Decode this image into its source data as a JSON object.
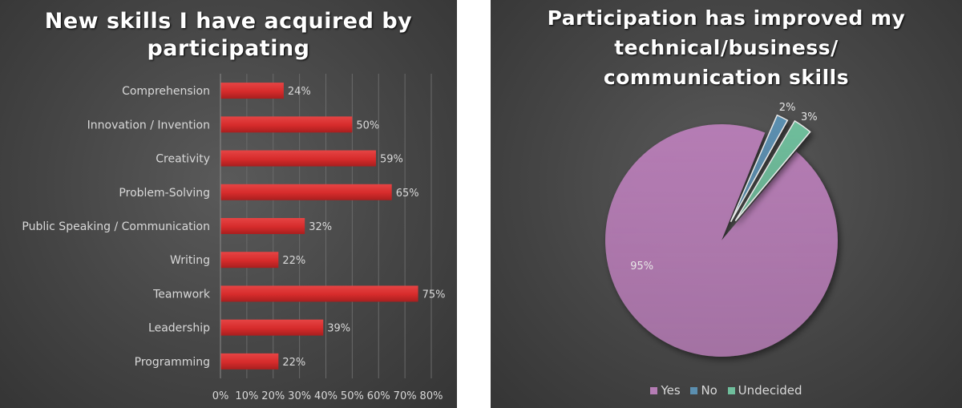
{
  "chart_data": [
    {
      "type": "bar",
      "orientation": "horizontal",
      "title": "New skills I have acquired by participating",
      "title_lines": [
        "New skills I have acquired by",
        "participating"
      ],
      "categories": [
        "Comprehension",
        "Innovation / Invention",
        "Creativity",
        "Problem-Solving",
        "Public Speaking / Communication",
        "Writing",
        "Teamwork",
        "Leadership",
        "Programming"
      ],
      "values": [
        24,
        50,
        59,
        65,
        32,
        22,
        75,
        39,
        22
      ],
      "value_labels": [
        "24%",
        "50%",
        "59%",
        "65%",
        "32%",
        "22%",
        "75%",
        "39%",
        "22%"
      ],
      "xlim": [
        0,
        80
      ],
      "xticks": [
        "0%",
        "10%",
        "20%",
        "30%",
        "40%",
        "50%",
        "60%",
        "70%",
        "80%"
      ],
      "grid": true,
      "bar_color": "#d62b2b"
    },
    {
      "type": "pie",
      "title": "Participation has improved my technical/business/ communication skills",
      "title_lines": [
        "Participation has improved my",
        "technical/business/",
        "communication skills"
      ],
      "slices": [
        {
          "name": "Yes",
          "value": 95,
          "label": "95%",
          "color": "#b57cb4"
        },
        {
          "name": "No",
          "value": 2,
          "label": "2%",
          "color": "#5b8fb0"
        },
        {
          "name": "Undecided",
          "value": 3,
          "label": "3%",
          "color": "#6fbe9c"
        }
      ],
      "legend": [
        "Yes",
        "No",
        "Undecided"
      ],
      "legend_position": "bottom"
    }
  ]
}
